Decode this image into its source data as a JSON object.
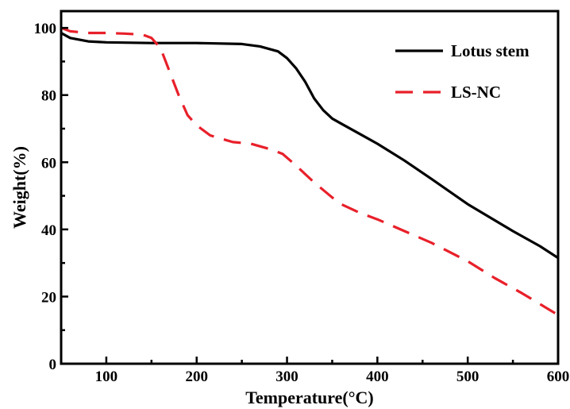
{
  "chart_data": {
    "type": "line",
    "xlabel": "Temperature(°C)",
    "ylabel": "Weight(%)",
    "xlim": [
      50,
      600
    ],
    "ylim": [
      0,
      105
    ],
    "xticks": [
      100,
      200,
      300,
      400,
      500,
      600
    ],
    "yticks": [
      0,
      20,
      40,
      60,
      80,
      100
    ],
    "grid": false,
    "legend_position": "top-right",
    "series": [
      {
        "name": "Lotus stem",
        "color": "#000000",
        "dash": "solid",
        "points": [
          [
            50,
            98.5
          ],
          [
            60,
            97
          ],
          [
            80,
            96
          ],
          [
            100,
            95.7
          ],
          [
            150,
            95.5
          ],
          [
            200,
            95.5
          ],
          [
            250,
            95.2
          ],
          [
            270,
            94.5
          ],
          [
            290,
            93
          ],
          [
            300,
            91
          ],
          [
            310,
            88
          ],
          [
            320,
            84
          ],
          [
            330,
            79
          ],
          [
            340,
            75.5
          ],
          [
            350,
            73
          ],
          [
            360,
            71.5
          ],
          [
            380,
            68.5
          ],
          [
            400,
            65.5
          ],
          [
            430,
            60.5
          ],
          [
            460,
            55
          ],
          [
            500,
            47.5
          ],
          [
            550,
            39.5
          ],
          [
            580,
            35
          ],
          [
            600,
            31.5
          ]
        ]
      },
      {
        "name": "LS-NC",
        "color": "#e8202a",
        "dash": "dashed",
        "points": [
          [
            50,
            100
          ],
          [
            60,
            99
          ],
          [
            80,
            98.5
          ],
          [
            100,
            98.5
          ],
          [
            120,
            98.3
          ],
          [
            140,
            98
          ],
          [
            150,
            97
          ],
          [
            160,
            94
          ],
          [
            170,
            87
          ],
          [
            180,
            80
          ],
          [
            190,
            74
          ],
          [
            200,
            71
          ],
          [
            215,
            68
          ],
          [
            240,
            66
          ],
          [
            260,
            65.5
          ],
          [
            280,
            64
          ],
          [
            295,
            62.5
          ],
          [
            310,
            59
          ],
          [
            330,
            54
          ],
          [
            350,
            49.5
          ],
          [
            360,
            47.5
          ],
          [
            380,
            45
          ],
          [
            400,
            43
          ],
          [
            430,
            39.5
          ],
          [
            460,
            36
          ],
          [
            500,
            30.5
          ],
          [
            530,
            25.5
          ],
          [
            560,
            21
          ],
          [
            600,
            14.5
          ]
        ]
      }
    ]
  }
}
